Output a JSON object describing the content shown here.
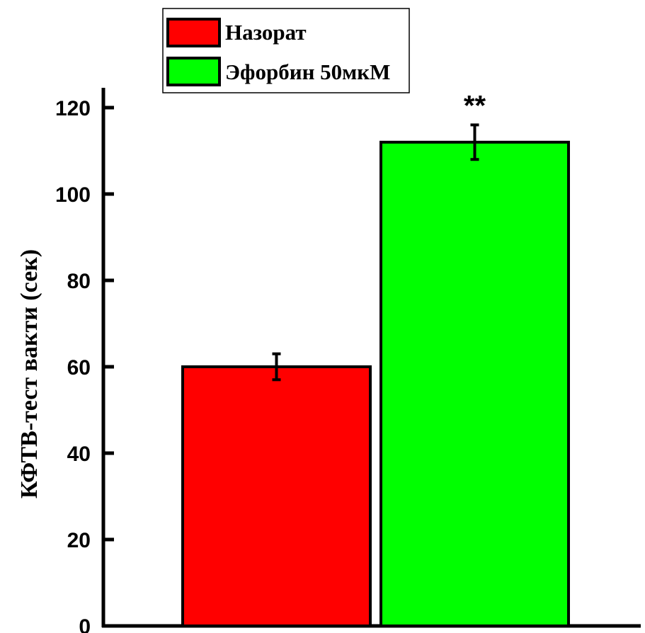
{
  "chart_data": {
    "type": "bar",
    "categories": [
      "Назорат",
      "Эфорбин 50мкМ"
    ],
    "values": [
      60,
      112
    ],
    "errors": [
      3,
      4
    ],
    "colors": [
      "#ff0000",
      "#00ff00"
    ],
    "ylabel": "КФТВ-тест вакти (сек)",
    "xlabel": "",
    "ylim": [
      0,
      120
    ],
    "yticks": [
      "0",
      "20",
      "40",
      "60",
      "80",
      "100",
      "120"
    ],
    "legend": {
      "entries": [
        "Назорат",
        "Эфорбин 50мкМ"
      ],
      "placement": "top-left"
    },
    "annotations": [
      {
        "text": "**",
        "category": "Эфорбин 50мкМ"
      }
    ],
    "grid": false
  }
}
